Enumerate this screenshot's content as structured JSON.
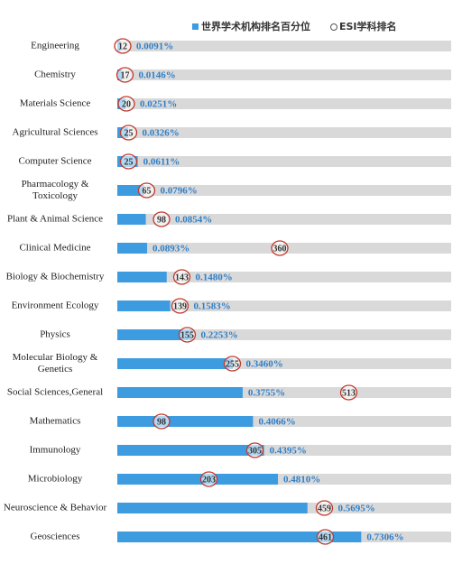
{
  "chart_data": {
    "type": "bar-with-rank",
    "categories": [
      "Engineering",
      "Chemistry",
      "Materials Science",
      "Agricultural Sciences",
      "Computer Science",
      "Pharmacology & Toxicology",
      "Plant & Animal Science",
      "Clinical Medicine",
      "Biology & Biochemistry",
      "Environment Ecology",
      "Physics",
      "Molecular Biology & Genetics",
      "Social Sciences,General",
      "Mathematics",
      "Immunology",
      "Microbiology",
      "Neuroscience & Behavior",
      "Geosciences"
    ],
    "series": [
      {
        "name": "世界学术机构排名百分位",
        "color": "#3d9be0",
        "values": [
          0.0091,
          0.0146,
          0.0251,
          0.0326,
          0.0611,
          0.0796,
          0.0854,
          0.0893,
          0.148,
          0.1583,
          0.2253,
          0.346,
          0.3755,
          0.4066,
          0.4395,
          0.481,
          0.5695,
          0.7306
        ],
        "value_labels": [
          "0.0091%",
          "0.0146%",
          "0.0251%",
          "0.0326%",
          "0.0611%",
          "0.0796%",
          "0.0854%",
          "0.0893%",
          "0.1480%",
          "0.1583%",
          "0.2253%",
          "0.3460%",
          "0.3755%",
          "0.4066%",
          "0.4395%",
          "0.4810%",
          "0.5695%",
          "0.7306%"
        ]
      },
      {
        "name": "ESI学科排名",
        "color": "#c0392b",
        "axis": "x2",
        "values": [
          12,
          17,
          20,
          25,
          25,
          65,
          98,
          360,
          143,
          139,
          155,
          255,
          513,
          98,
          305,
          203,
          459,
          461
        ]
      }
    ],
    "xlim": [
      0,
      1
    ],
    "x2lim": [
      0,
      740
    ]
  }
}
